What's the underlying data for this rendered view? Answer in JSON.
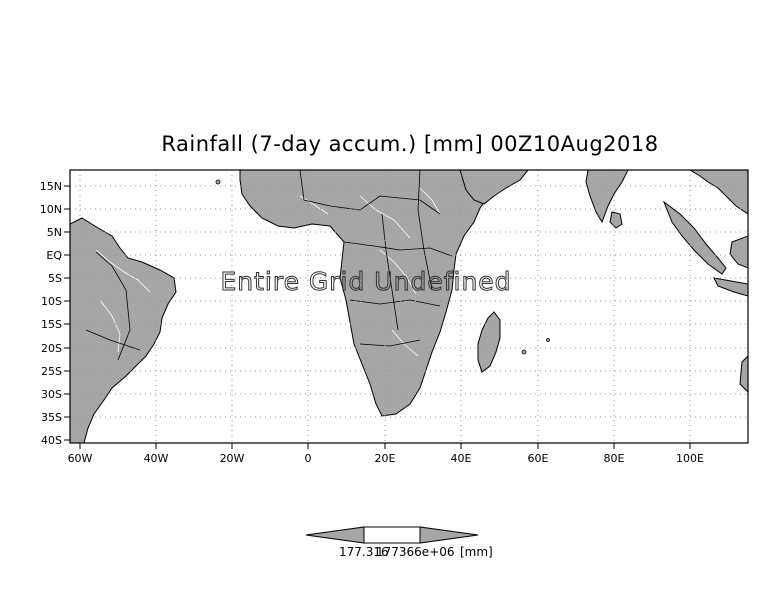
{
  "title": "Rainfall (7-day accum.) [mm] 00Z10Aug2018",
  "overlay_text": "Entire Grid Undefined",
  "lat_labels": [
    "15N",
    "10N",
    "5N",
    "EQ",
    "5S",
    "10S",
    "15S",
    "20S",
    "25S",
    "30S",
    "35S",
    "40S"
  ],
  "lon_labels": [
    "60W",
    "40W",
    "20W",
    "0",
    "20E",
    "40E",
    "60E",
    "80E",
    "100E"
  ],
  "colorbar": {
    "value_left": "177.316",
    "value_mid": "177366e+06",
    "units": "[mm]"
  },
  "colors": {
    "land": "#a6a6a6",
    "ocean": "#ffffff",
    "coast": "#000000",
    "rivers": "#ffffff",
    "grid": "#999999"
  }
}
